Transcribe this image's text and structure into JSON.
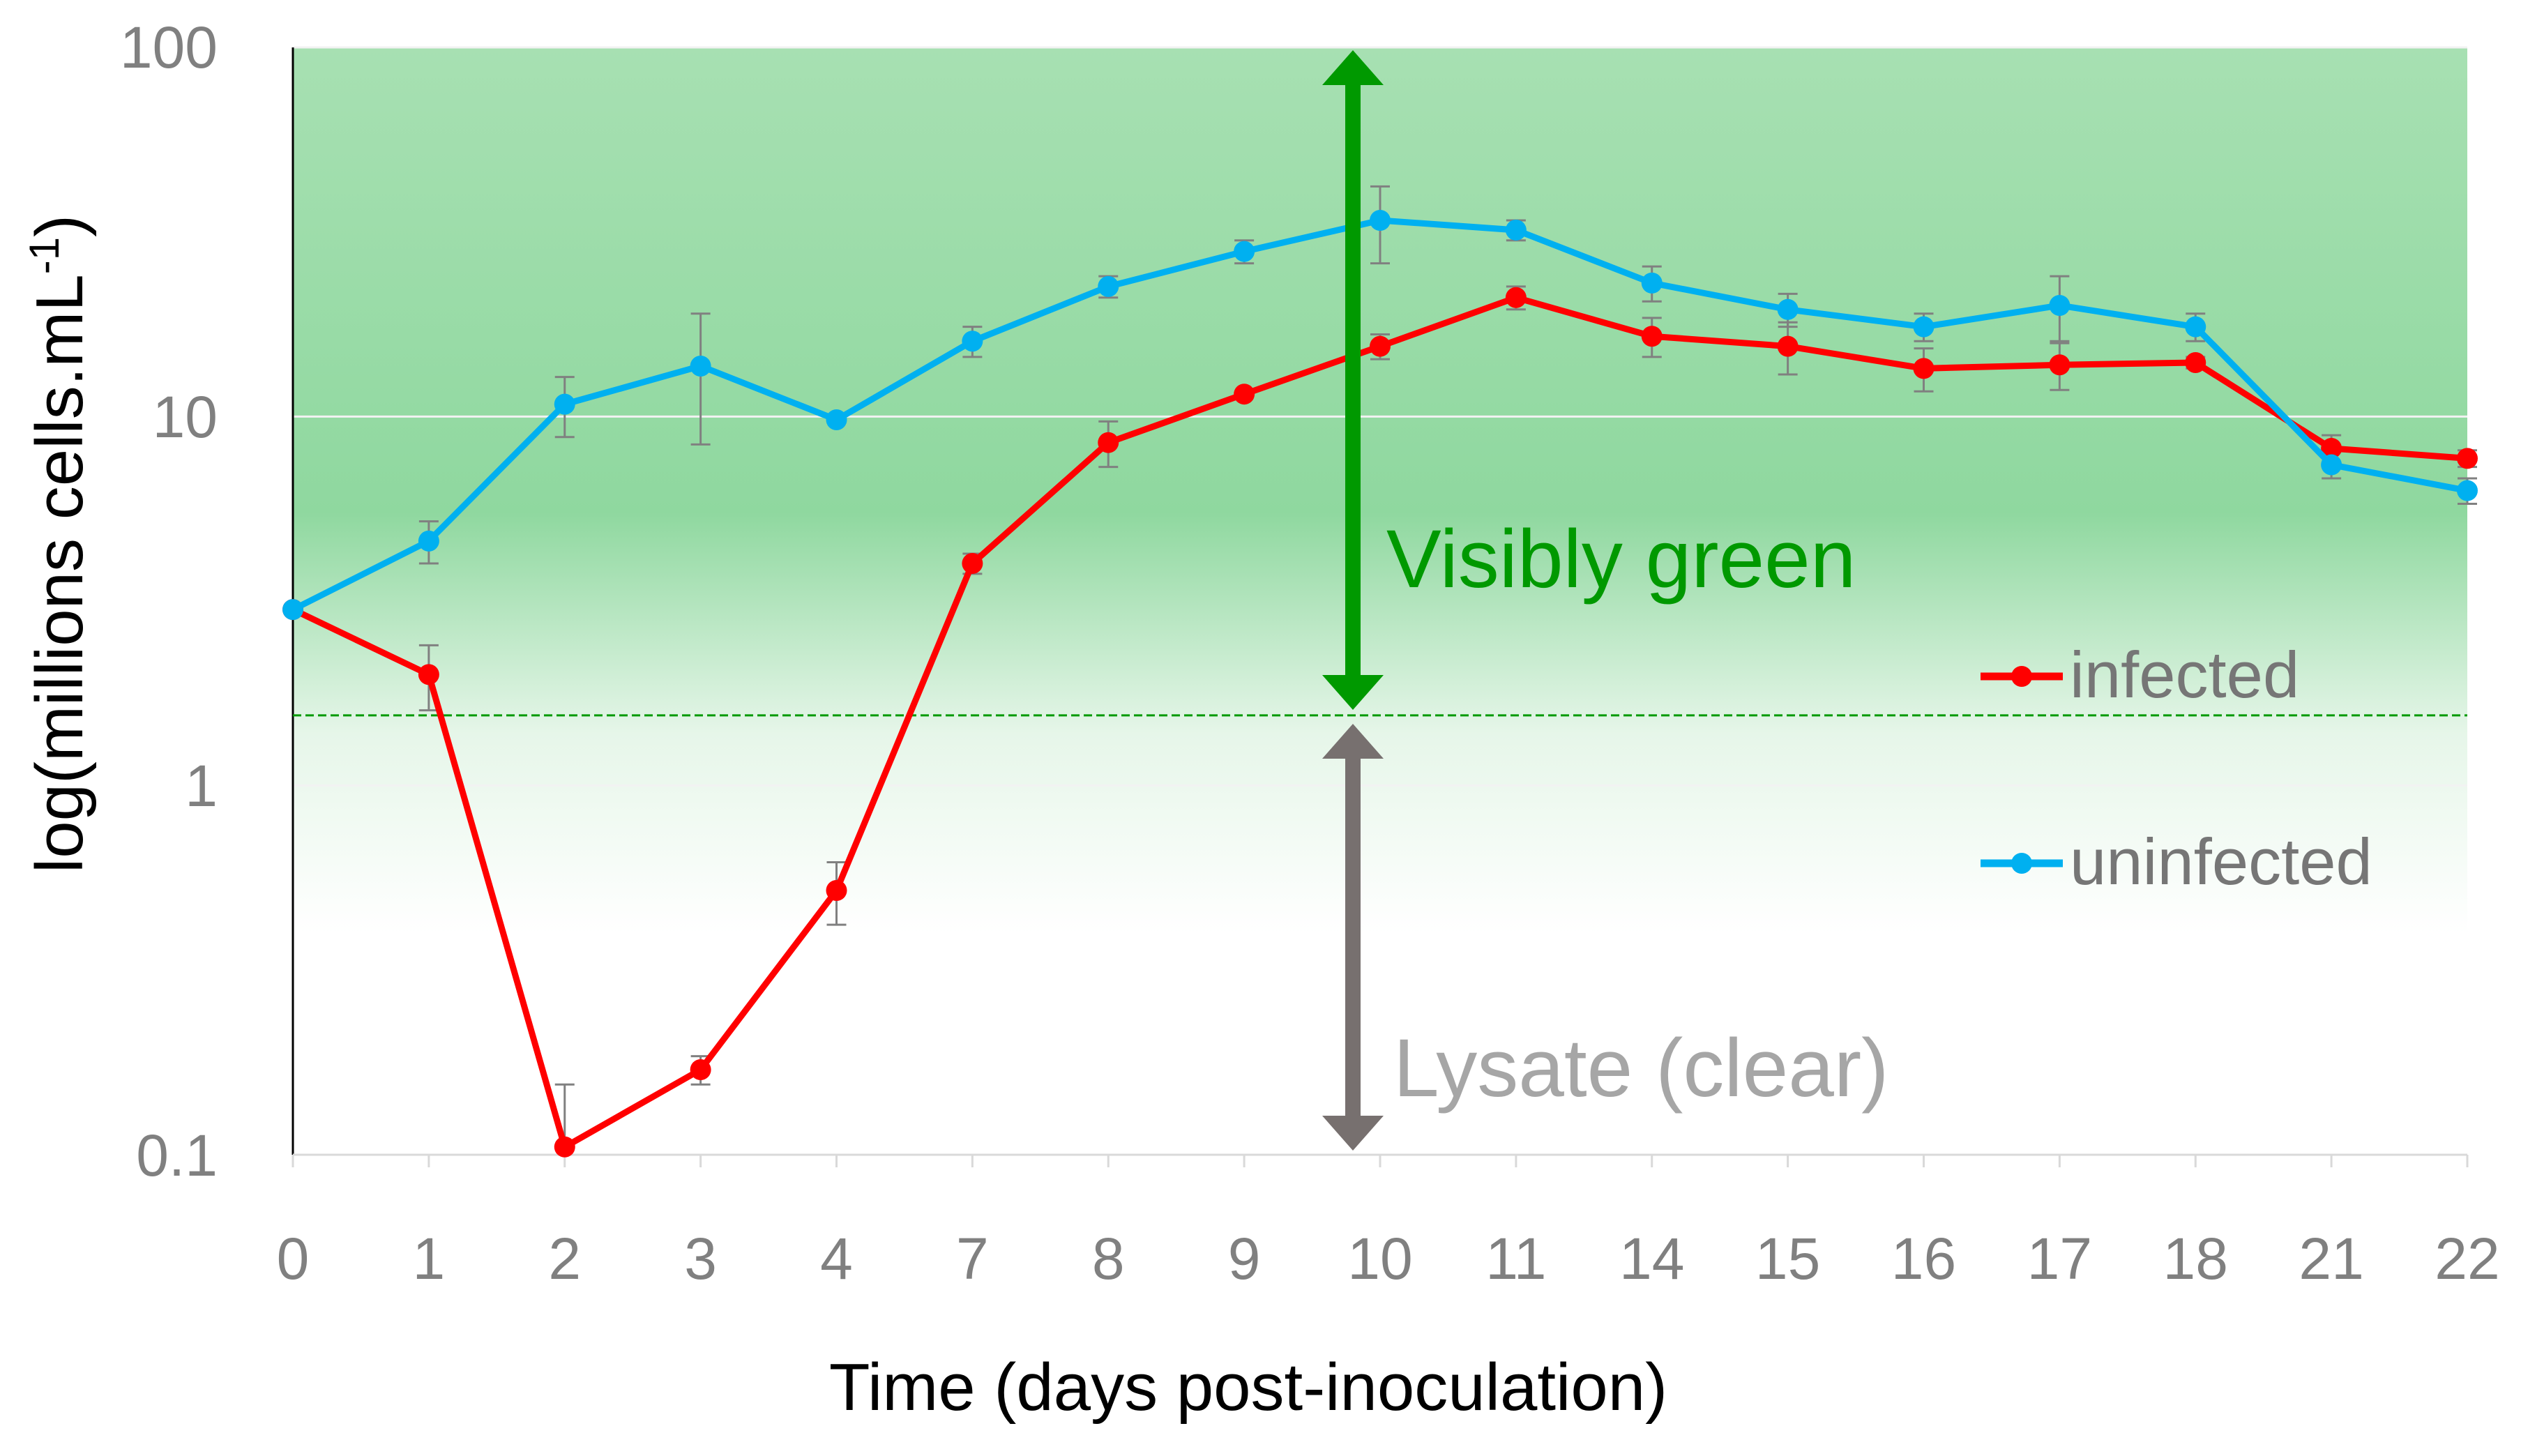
{
  "chart_data": {
    "type": "line",
    "title": "",
    "xlabel": "Time (days post-inoculation)",
    "ylabel_main": "log(millions cells.mL",
    "ylabel_sup": "-1",
    "ylabel_close": ")",
    "yscale": "log",
    "ylim": [
      0.1,
      100
    ],
    "yticks": [
      "0.1",
      "1",
      "10",
      "100"
    ],
    "categories": [
      "0",
      "1",
      "2",
      "3",
      "4",
      "7",
      "8",
      "9",
      "10",
      "11",
      "14",
      "15",
      "16",
      "17",
      "18",
      "21",
      "22"
    ],
    "series": [
      {
        "name": "infected",
        "color": "#ff0000",
        "values": [
          3.0,
          2.0,
          0.105,
          0.17,
          0.52,
          4.0,
          8.5,
          11.5,
          15.5,
          21.0,
          16.5,
          15.5,
          13.5,
          13.8,
          14.0,
          8.2,
          7.7
        ],
        "err_low": [
          0,
          0.4,
          0,
          0.015,
          0.1,
          0.25,
          1.2,
          0,
          1.2,
          1.5,
          2.0,
          2.5,
          1.8,
          2.0,
          0.5,
          0.7,
          0.4
        ],
        "err_high": [
          0,
          0.4,
          0.05,
          0.015,
          0.1,
          0.25,
          1.2,
          0,
          1.2,
          1.5,
          2.0,
          2.5,
          1.8,
          2.0,
          0.5,
          0.7,
          0.4
        ]
      },
      {
        "name": "uninfected",
        "color": "#00b0f0",
        "values": [
          3.0,
          4.6,
          10.8,
          13.7,
          9.8,
          16.0,
          22.5,
          28.0,
          34.0,
          32.0,
          23.0,
          19.5,
          17.5,
          20.0,
          17.5,
          7.4,
          6.3
        ],
        "err_low": [
          0,
          0.6,
          2.0,
          5.3,
          0,
          1.5,
          1.5,
          2.0,
          8.0,
          2.0,
          2.5,
          2.0,
          1.5,
          4.0,
          1.5,
          0.6,
          0.5
        ],
        "err_high": [
          0,
          0.6,
          2.0,
          5.3,
          0,
          1.5,
          1.5,
          2.0,
          8.0,
          2.0,
          2.5,
          2.0,
          1.5,
          4.0,
          1.5,
          0.6,
          0.5
        ]
      }
    ],
    "threshold_value": 1.55,
    "annotations": {
      "visibly_green": "Visibly green",
      "lysate": "Lysate (clear)"
    },
    "legend": {
      "position": "right",
      "entries": [
        "infected",
        "uninfected"
      ]
    },
    "colors": {
      "green_band": "#8fd89f",
      "green_arrow": "#009900",
      "grey_arrow": "#77706f",
      "lysate_text": "#a6a6a6",
      "error_bar": "#808080",
      "threshold_line": "#009900"
    }
  }
}
